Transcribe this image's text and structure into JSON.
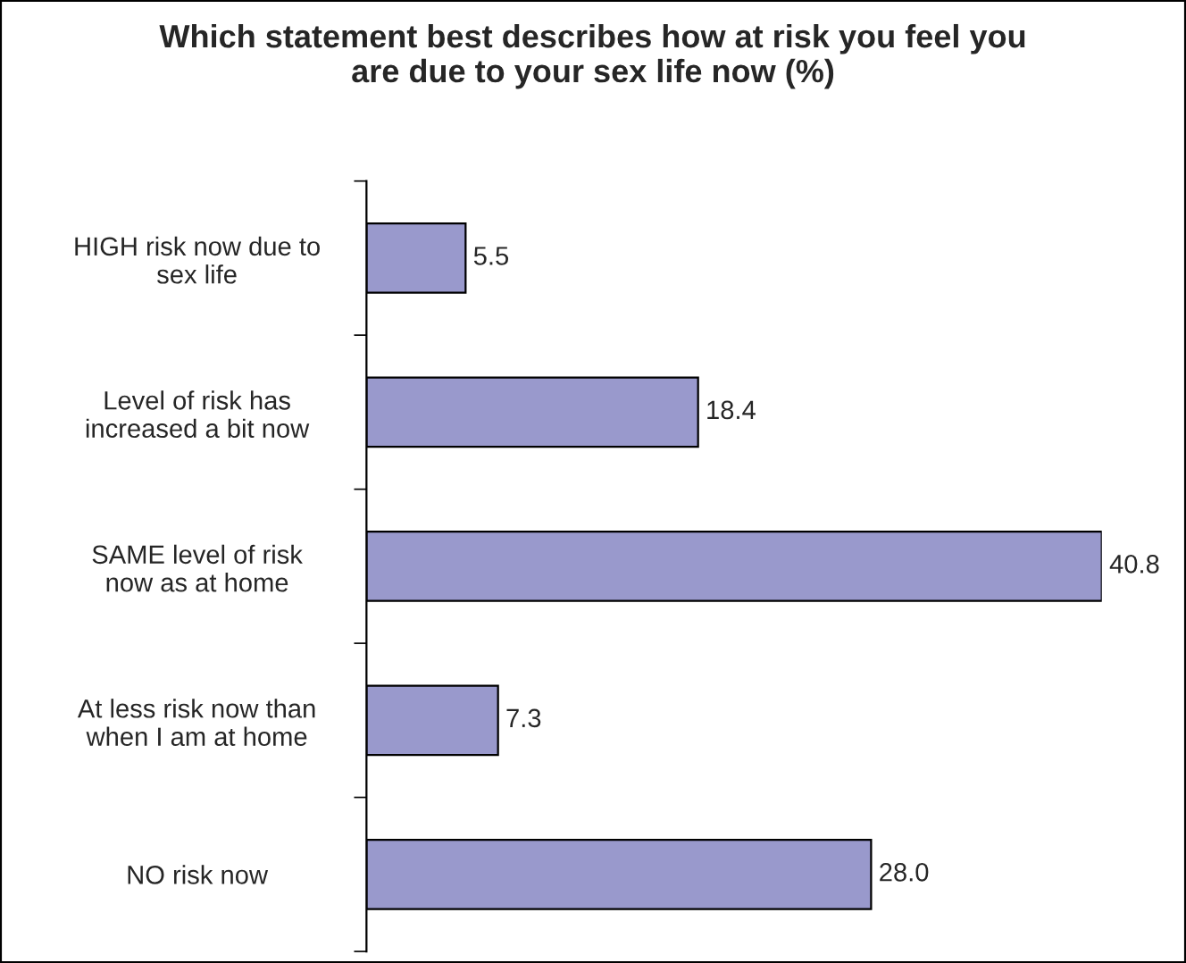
{
  "chart_data": {
    "type": "bar",
    "orientation": "horizontal",
    "title": "Which statement best describes how at risk you feel you\nare due to your sex life now (%)",
    "categories": [
      "HIGH risk now due to\nsex life",
      "Level of risk has\nincreased a bit now",
      "SAME level of risk\nnow as at home",
      "At less risk now than\nwhen I am at home",
      "NO risk now"
    ],
    "values": [
      5.5,
      18.4,
      40.8,
      7.3,
      28.0
    ],
    "value_labels": [
      "5.5",
      "18.4",
      "40.8",
      "7.3",
      "28.0"
    ],
    "color": "#9999cc",
    "grid": false,
    "legend": false
  }
}
